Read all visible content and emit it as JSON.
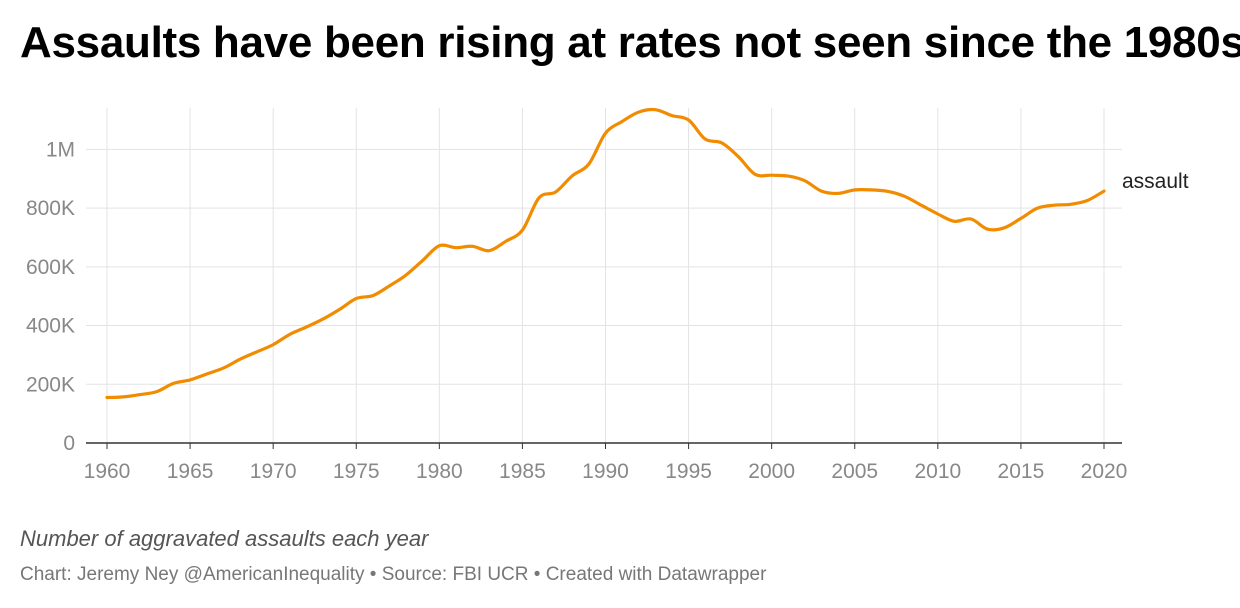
{
  "title": "Assaults have been rising at rates not seen since the 1980s",
  "description": "Number of aggravated assaults each year",
  "credits": "Chart: Jeremy Ney @AmericanInequality • Source: FBI UCR • Created with Datawrapper",
  "colors": {
    "series": "#f18b00",
    "grid": "#e3e3e3",
    "axis": "#333333",
    "tick": "#888888"
  },
  "chart_data": {
    "type": "line",
    "title": "Assaults have been rising at rates not seen since the 1980s",
    "xlabel": "",
    "ylabel": "",
    "xlim": [
      1960,
      2020
    ],
    "ylim": [
      0,
      1100000
    ],
    "grid": true,
    "legend": "inline-right",
    "y_ticks": [
      0,
      200000,
      400000,
      600000,
      800000,
      1000000
    ],
    "y_tick_labels": [
      "0",
      "200K",
      "400K",
      "600K",
      "800K",
      "1M"
    ],
    "x_ticks": [
      1960,
      1965,
      1970,
      1975,
      1980,
      1985,
      1990,
      1995,
      2000,
      2005,
      2010,
      2015,
      2020
    ],
    "x_tick_labels": [
      "1960",
      "1965",
      "1970",
      "1975",
      "1980",
      "1985",
      "1990",
      "1995",
      "2000",
      "2005",
      "2010",
      "2015",
      "2020"
    ],
    "series": [
      {
        "name": "assault",
        "color": "#f18b00",
        "x": [
          1960,
          1961,
          1962,
          1963,
          1964,
          1965,
          1966,
          1967,
          1968,
          1969,
          1970,
          1971,
          1972,
          1973,
          1974,
          1975,
          1976,
          1977,
          1978,
          1979,
          1980,
          1981,
          1982,
          1983,
          1984,
          1985,
          1986,
          1987,
          1988,
          1989,
          1990,
          1991,
          1992,
          1993,
          1994,
          1995,
          1996,
          1997,
          1998,
          1999,
          2000,
          2001,
          2002,
          2003,
          2004,
          2005,
          2006,
          2007,
          2008,
          2009,
          2010,
          2011,
          2012,
          2013,
          2014,
          2015,
          2016,
          2017,
          2018,
          2019,
          2020
        ],
        "y": [
          155000,
          157000,
          165000,
          175000,
          203000,
          215000,
          235000,
          255000,
          285000,
          310000,
          335000,
          370000,
          395000,
          422000,
          455000,
          492000,
          502000,
          535000,
          572000,
          622000,
          672000,
          665000,
          670000,
          655000,
          687000,
          725000,
          835000,
          855000,
          910000,
          950000,
          1055000,
          1095000,
          1127000,
          1135000,
          1115000,
          1100000,
          1035000,
          1022000,
          975000,
          915000,
          912000,
          909000,
          893000,
          858000,
          850000,
          862000,
          862000,
          857000,
          840000,
          810000,
          780000,
          755000,
          763000,
          728000,
          733000,
          765000,
          800000,
          810000,
          813000,
          826000,
          858000
        ]
      }
    ]
  }
}
